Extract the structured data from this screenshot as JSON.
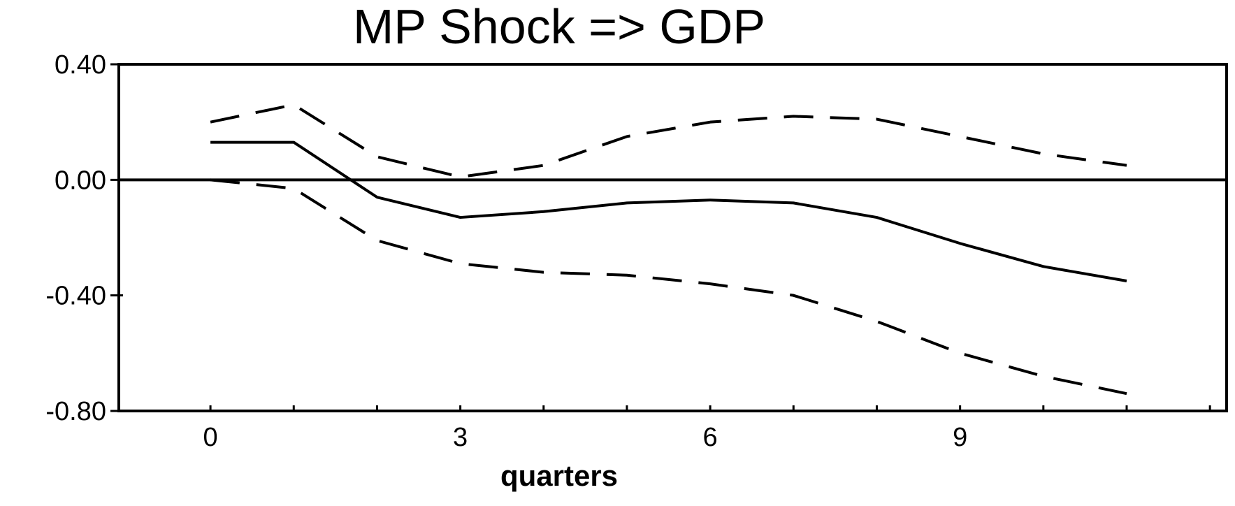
{
  "chart_data": {
    "type": "line",
    "title": "MP Shock => GDP",
    "xlabel": "quarters",
    "ylabel": "",
    "xlim": [
      -1.1,
      12.2
    ],
    "ylim": [
      -0.8,
      0.4
    ],
    "x_ticks": [
      0,
      3,
      6,
      9
    ],
    "x_tick_labels": [
      "0",
      "3",
      "6",
      "9"
    ],
    "y_ticks": [
      0.4,
      0.0,
      -0.4,
      -0.8
    ],
    "y_tick_labels": [
      "0.40",
      "0.00",
      "-0.40",
      "-0.80"
    ],
    "zero_line": 0.0,
    "grid": false,
    "x": [
      0,
      1,
      2,
      3,
      4,
      5,
      6,
      7,
      8,
      9,
      10,
      11
    ],
    "series": [
      {
        "style": "solid",
        "values": [
          0.13,
          0.13,
          -0.06,
          -0.13,
          -0.11,
          -0.08,
          -0.07,
          -0.08,
          -0.13,
          -0.22,
          -0.3,
          -0.35
        ]
      },
      {
        "style": "dashed",
        "values": [
          0.2,
          0.26,
          0.08,
          0.01,
          0.05,
          0.15,
          0.2,
          0.22,
          0.21,
          0.15,
          0.09,
          0.05
        ]
      },
      {
        "style": "dashed",
        "values": [
          0.0,
          -0.03,
          -0.21,
          -0.29,
          -0.32,
          -0.33,
          -0.36,
          -0.4,
          -0.49,
          -0.6,
          -0.68,
          -0.74
        ]
      }
    ],
    "colors": {
      "line": "#000000",
      "background": "#ffffff"
    }
  }
}
